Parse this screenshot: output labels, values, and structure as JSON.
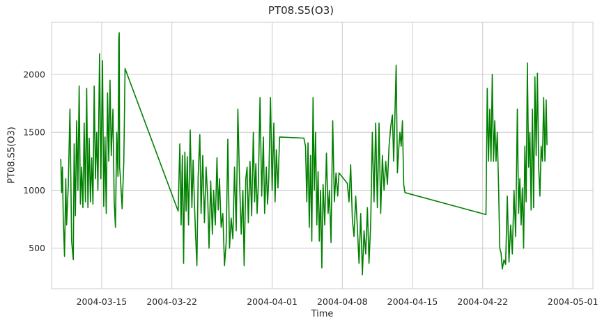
{
  "chart_data": {
    "type": "line",
    "title": "PT08.S5(O3)",
    "xlabel": "Time",
    "ylabel": "PT08.S5(O3)",
    "x_tick_labels": [
      "2004-03-15",
      "2004-03-22",
      "2004-04-01",
      "2004-04-08",
      "2004-04-15",
      "2004-04-22",
      "2004-05-01"
    ],
    "y_tick_labels": [
      "500",
      "1000",
      "1500",
      "2000"
    ],
    "xlim": [
      "2004-03-10T00:00",
      "2004-05-03T00:00"
    ],
    "ylim": [
      150,
      2450
    ],
    "grid": true,
    "color": "#008000",
    "series": [
      {
        "values": [
          [
            "2004-03-10T22:00",
            1270
          ],
          [
            "2004-03-11T00:00",
            980
          ],
          [
            "2004-03-11T02:00",
            1200
          ],
          [
            "2004-03-11T04:00",
            760
          ],
          [
            "2004-03-11T07:00",
            430
          ],
          [
            "2004-03-11T10:00",
            1100
          ],
          [
            "2004-03-11T12:00",
            700
          ],
          [
            "2004-03-11T16:00",
            1040
          ],
          [
            "2004-03-11T20:00",
            1700
          ],
          [
            "2004-03-12T00:00",
            560
          ],
          [
            "2004-03-12T04:00",
            400
          ],
          [
            "2004-03-12T06:00",
            1400
          ],
          [
            "2004-03-12T09:00",
            780
          ],
          [
            "2004-03-12T12:00",
            1600
          ],
          [
            "2004-03-12T15:00",
            1000
          ],
          [
            "2004-03-12T18:00",
            1900
          ],
          [
            "2004-03-12T21:00",
            880
          ],
          [
            "2004-03-13T00:00",
            1200
          ],
          [
            "2004-03-13T03:00",
            850
          ],
          [
            "2004-03-13T06:00",
            1580
          ],
          [
            "2004-03-13T09:00",
            900
          ],
          [
            "2004-03-13T12:00",
            1880
          ],
          [
            "2004-03-13T15:00",
            850
          ],
          [
            "2004-03-13T18:00",
            1450
          ],
          [
            "2004-03-13T21:00",
            900
          ],
          [
            "2004-03-14T00:00",
            1280
          ],
          [
            "2004-03-14T03:00",
            880
          ],
          [
            "2004-03-14T06:00",
            1900
          ],
          [
            "2004-03-14T09:00",
            1100
          ],
          [
            "2004-03-14T12:00",
            1500
          ],
          [
            "2004-03-14T15:00",
            1000
          ],
          [
            "2004-03-14T19:00",
            2180
          ],
          [
            "2004-03-14T22:00",
            1100
          ],
          [
            "2004-03-15T02:00",
            2120
          ],
          [
            "2004-03-15T05:00",
            860
          ],
          [
            "2004-03-15T08:00",
            1460
          ],
          [
            "2004-03-15T11:00",
            800
          ],
          [
            "2004-03-15T14:00",
            1840
          ],
          [
            "2004-03-15T17:00",
            1250
          ],
          [
            "2004-03-15T20:00",
            1950
          ],
          [
            "2004-03-15T23:00",
            1300
          ],
          [
            "2004-03-16T03:00",
            1700
          ],
          [
            "2004-03-16T06:00",
            900
          ],
          [
            "2004-03-16T09:00",
            680
          ],
          [
            "2004-03-16T12:00",
            1500
          ],
          [
            "2004-03-16T15:00",
            1120
          ],
          [
            "2004-03-16T17:00",
            2310
          ],
          [
            "2004-03-16T18:00",
            2360
          ],
          [
            "2004-03-16T19:00",
            1200
          ],
          [
            "2004-03-16T21:00",
            1100
          ],
          [
            "2004-03-17T01:00",
            840
          ],
          [
            "2004-03-17T05:00",
            1250
          ],
          [
            "2004-03-17T08:00",
            2050
          ],
          [
            "2004-03-22T15:00",
            820
          ],
          [
            "2004-03-22T19:00",
            1400
          ],
          [
            "2004-03-22T22:00",
            700
          ],
          [
            "2004-03-23T01:00",
            1300
          ],
          [
            "2004-03-23T04:00",
            370
          ],
          [
            "2004-03-23T07:00",
            1330
          ],
          [
            "2004-03-23T10:00",
            820
          ],
          [
            "2004-03-23T13:00",
            1290
          ],
          [
            "2004-03-23T16:00",
            700
          ],
          [
            "2004-03-23T20:00",
            1520
          ],
          [
            "2004-03-24T00:00",
            850
          ],
          [
            "2004-03-24T03:00",
            1260
          ],
          [
            "2004-03-24T06:00",
            900
          ],
          [
            "2004-03-24T09:00",
            600
          ],
          [
            "2004-03-24T12:00",
            350
          ],
          [
            "2004-03-24T15:00",
            1120
          ],
          [
            "2004-03-24T19:00",
            1480
          ],
          [
            "2004-03-24T22:00",
            800
          ],
          [
            "2004-03-25T02:00",
            1300
          ],
          [
            "2004-03-25T06:00",
            720
          ],
          [
            "2004-03-25T10:00",
            1200
          ],
          [
            "2004-03-25T14:00",
            920
          ],
          [
            "2004-03-25T17:00",
            500
          ],
          [
            "2004-03-25T21:00",
            1080
          ],
          [
            "2004-03-26T01:00",
            620
          ],
          [
            "2004-03-26T04:00",
            1000
          ],
          [
            "2004-03-26T08:00",
            700
          ],
          [
            "2004-03-26T12:00",
            1280
          ],
          [
            "2004-03-26T15:00",
            830
          ],
          [
            "2004-03-26T18:00",
            1100
          ],
          [
            "2004-03-26T22:00",
            680
          ],
          [
            "2004-03-27T02:00",
            800
          ],
          [
            "2004-03-27T06:00",
            350
          ],
          [
            "2004-03-27T10:00",
            550
          ],
          [
            "2004-03-27T14:00",
            1440
          ],
          [
            "2004-03-27T18:00",
            500
          ],
          [
            "2004-03-27T22:00",
            760
          ],
          [
            "2004-03-28T02:00",
            580
          ],
          [
            "2004-03-28T06:00",
            1200
          ],
          [
            "2004-03-28T10:00",
            650
          ],
          [
            "2004-03-28T14:00",
            1700
          ],
          [
            "2004-03-28T18:00",
            1080
          ],
          [
            "2004-03-28T22:00",
            620
          ],
          [
            "2004-03-29T02:00",
            1000
          ],
          [
            "2004-03-29T05:00",
            350
          ],
          [
            "2004-03-29T09:00",
            1100
          ],
          [
            "2004-03-29T12:00",
            1200
          ],
          [
            "2004-03-29T15:00",
            720
          ],
          [
            "2004-03-29T19:00",
            1250
          ],
          [
            "2004-03-29T23:00",
            780
          ],
          [
            "2004-03-30T03:00",
            1500
          ],
          [
            "2004-03-30T06:00",
            900
          ],
          [
            "2004-03-30T09:00",
            1230
          ],
          [
            "2004-03-30T12:00",
            800
          ],
          [
            "2004-03-30T15:00",
            1060
          ],
          [
            "2004-03-30T19:00",
            1800
          ],
          [
            "2004-03-30T23:00",
            950
          ],
          [
            "2004-03-31T03:00",
            1460
          ],
          [
            "2004-03-31T06:00",
            800
          ],
          [
            "2004-03-31T10:00",
            1200
          ],
          [
            "2004-03-31T13:00",
            880
          ],
          [
            "2004-03-31T16:00",
            1100
          ],
          [
            "2004-03-31T20:00",
            1800
          ],
          [
            "2004-04-01T00:00",
            1000
          ],
          [
            "2004-04-01T04:00",
            1580
          ],
          [
            "2004-04-01T07:00",
            900
          ],
          [
            "2004-04-01T10:00",
            1350
          ],
          [
            "2004-04-01T14:00",
            1020
          ],
          [
            "2004-04-01T18:00",
            1460
          ],
          [
            "2004-04-04T04:00",
            1450
          ],
          [
            "2004-04-04T08:00",
            1380
          ],
          [
            "2004-04-04T11:00",
            900
          ],
          [
            "2004-04-04T14:00",
            1410
          ],
          [
            "2004-04-04T17:00",
            680
          ],
          [
            "2004-04-04T20:00",
            1300
          ],
          [
            "2004-04-04T23:00",
            560
          ],
          [
            "2004-04-05T02:00",
            1800
          ],
          [
            "2004-04-05T05:00",
            1000
          ],
          [
            "2004-04-05T08:00",
            1500
          ],
          [
            "2004-04-05T11:00",
            700
          ],
          [
            "2004-04-05T14:00",
            1160
          ],
          [
            "2004-04-05T17:00",
            560
          ],
          [
            "2004-04-05T20:00",
            1000
          ],
          [
            "2004-04-05T23:00",
            330
          ],
          [
            "2004-04-06T02:00",
            1050
          ],
          [
            "2004-04-06T06:00",
            700
          ],
          [
            "2004-04-06T10:00",
            1320
          ],
          [
            "2004-04-06T14:00",
            800
          ],
          [
            "2004-04-06T17:00",
            1000
          ],
          [
            "2004-04-06T21:00",
            550
          ],
          [
            "2004-04-07T01:00",
            1600
          ],
          [
            "2004-04-07T05:00",
            900
          ],
          [
            "2004-04-07T09:00",
            1150
          ],
          [
            "2004-04-07T13:00",
            950
          ],
          [
            "2004-04-07T16:00",
            1150
          ],
          [
            "2004-04-08T12:00",
            1060
          ],
          [
            "2004-04-08T16:00",
            900
          ],
          [
            "2004-04-08T20:00",
            1220
          ],
          [
            "2004-04-09T00:00",
            750
          ],
          [
            "2004-04-09T04:00",
            600
          ],
          [
            "2004-04-09T08:00",
            950
          ],
          [
            "2004-04-09T12:00",
            680
          ],
          [
            "2004-04-09T16:00",
            370
          ],
          [
            "2004-04-09T20:00",
            800
          ],
          [
            "2004-04-10T00:00",
            270
          ],
          [
            "2004-04-10T04:00",
            650
          ],
          [
            "2004-04-10T08:00",
            450
          ],
          [
            "2004-04-10T12:00",
            850
          ],
          [
            "2004-04-10T16:00",
            370
          ],
          [
            "2004-04-10T20:00",
            700
          ],
          [
            "2004-04-11T00:00",
            1500
          ],
          [
            "2004-04-11T04:00",
            900
          ],
          [
            "2004-04-11T08:00",
            1580
          ],
          [
            "2004-04-11T12:00",
            850
          ],
          [
            "2004-04-11T16:00",
            1580
          ],
          [
            "2004-04-11T20:00",
            800
          ],
          [
            "2004-04-12T00:00",
            1300
          ],
          [
            "2004-04-12T04:00",
            1000
          ],
          [
            "2004-04-12T08:00",
            1250
          ],
          [
            "2004-04-12T12:00",
            1050
          ],
          [
            "2004-04-12T16:00",
            1380
          ],
          [
            "2004-04-12T20:00",
            1550
          ],
          [
            "2004-04-13T00:00",
            1650
          ],
          [
            "2004-04-13T03:00",
            1250
          ],
          [
            "2004-04-13T06:00",
            1650
          ],
          [
            "2004-04-13T09:00",
            2080
          ],
          [
            "2004-04-13T12:00",
            1150
          ],
          [
            "2004-04-13T15:00",
            1350
          ],
          [
            "2004-04-13T18:00",
            1500
          ],
          [
            "2004-04-13T21:00",
            1380
          ],
          [
            "2004-04-14T00:00",
            1600
          ],
          [
            "2004-04-14T03:00",
            1050
          ],
          [
            "2004-04-14T06:00",
            980
          ],
          [
            "2004-04-22T08:00",
            790
          ],
          [
            "2004-04-22T11:00",
            1880
          ],
          [
            "2004-04-22T14:00",
            1250
          ],
          [
            "2004-04-22T17:00",
            1700
          ],
          [
            "2004-04-22T20:00",
            1250
          ],
          [
            "2004-04-22T23:00",
            2000
          ],
          [
            "2004-04-23T02:00",
            1250
          ],
          [
            "2004-04-23T05:00",
            1600
          ],
          [
            "2004-04-23T08:00",
            1250
          ],
          [
            "2004-04-23T11:00",
            1500
          ],
          [
            "2004-04-23T14:00",
            1050
          ],
          [
            "2004-04-23T17:00",
            500
          ],
          [
            "2004-04-23T20:00",
            460
          ],
          [
            "2004-04-23T23:00",
            320
          ],
          [
            "2004-04-24T03:00",
            400
          ],
          [
            "2004-04-24T07:00",
            360
          ],
          [
            "2004-04-24T11:00",
            950
          ],
          [
            "2004-04-24T15:00",
            380
          ],
          [
            "2004-04-24T19:00",
            700
          ],
          [
            "2004-04-24T23:00",
            450
          ],
          [
            "2004-04-25T03:00",
            1000
          ],
          [
            "2004-04-25T07:00",
            600
          ],
          [
            "2004-04-25T11:00",
            1700
          ],
          [
            "2004-04-25T14:00",
            800
          ],
          [
            "2004-04-25T17:00",
            1100
          ],
          [
            "2004-04-25T20:00",
            700
          ],
          [
            "2004-04-25T23:00",
            1020
          ],
          [
            "2004-04-26T02:00",
            500
          ],
          [
            "2004-04-26T05:00",
            1380
          ],
          [
            "2004-04-26T08:00",
            900
          ],
          [
            "2004-04-26T11:00",
            2100
          ],
          [
            "2004-04-26T14:00",
            1200
          ],
          [
            "2004-04-26T17:00",
            1500
          ],
          [
            "2004-04-26T20:00",
            830
          ],
          [
            "2004-04-26T23:00",
            1700
          ],
          [
            "2004-04-27T02:00",
            850
          ],
          [
            "2004-04-27T05:00",
            1980
          ],
          [
            "2004-04-27T08:00",
            1300
          ],
          [
            "2004-04-27T11:00",
            2010
          ],
          [
            "2004-04-27T14:00",
            1200
          ],
          [
            "2004-04-27T17:00",
            950
          ],
          [
            "2004-04-27T20:00",
            1380
          ],
          [
            "2004-04-27T23:00",
            1250
          ],
          [
            "2004-04-28T02:00",
            1800
          ],
          [
            "2004-04-28T05:00",
            1250
          ],
          [
            "2004-04-28T08:00",
            1780
          ],
          [
            "2004-04-28T10:00",
            1390
          ]
        ]
      }
    ]
  }
}
